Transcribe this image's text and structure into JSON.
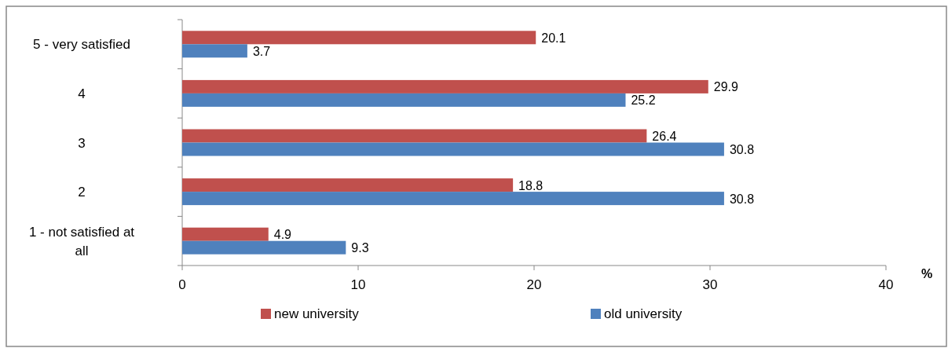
{
  "chart_data": {
    "type": "bar",
    "orientation": "horizontal",
    "categories": [
      "5 - very satisfied",
      "4",
      "3",
      "2",
      "1 - not satisfied at all"
    ],
    "series": [
      {
        "name": "new university",
        "color": "#c0504d",
        "values": [
          20.1,
          29.9,
          26.4,
          18.8,
          4.9
        ]
      },
      {
        "name": "old university",
        "color": "#4f81bd",
        "values": [
          3.7,
          25.2,
          30.8,
          30.8,
          9.3
        ]
      }
    ],
    "xlabel": "%",
    "xlim": [
      0,
      40
    ],
    "xticks": [
      0,
      10,
      20,
      30,
      40
    ],
    "data_labels": true,
    "legend": "bottom",
    "grid": false
  }
}
